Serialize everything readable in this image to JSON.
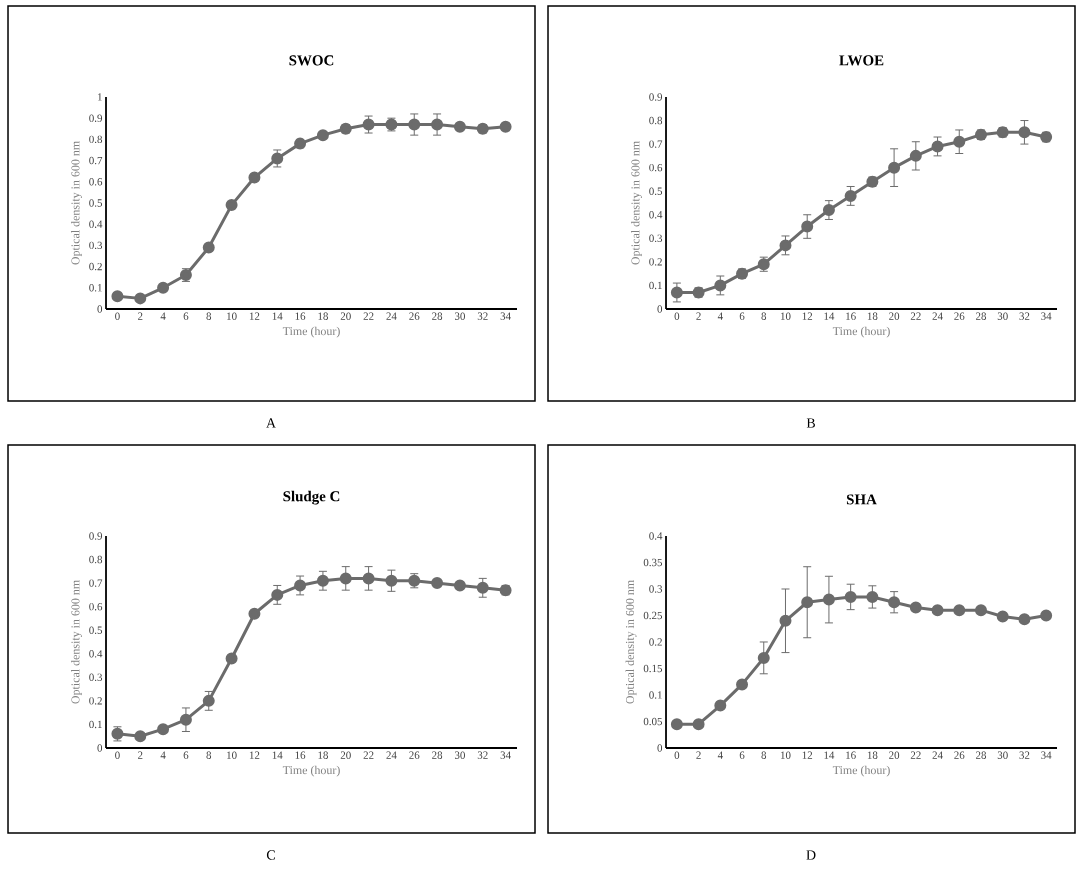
{
  "chart_data": [
    {
      "type": "line",
      "title": "SWOC",
      "xlabel": "Time (hour)",
      "ylabel": "Optical density in 600 nm",
      "annotations": [
        "A"
      ],
      "color": "#6b6b6b",
      "marker": "circle",
      "categories": [
        "0",
        "2",
        "4",
        "6",
        "8",
        "10",
        "12",
        "14",
        "16",
        "18",
        "20",
        "22",
        "24",
        "26",
        "28",
        "30",
        "32",
        "34"
      ],
      "values": [
        0.06,
        0.05,
        0.1,
        0.16,
        0.29,
        0.49,
        0.62,
        0.71,
        0.78,
        0.82,
        0.85,
        0.87,
        0.87,
        0.87,
        0.87,
        0.86,
        0.85,
        0.86
      ],
      "errors": [
        null,
        null,
        null,
        0.03,
        null,
        null,
        null,
        0.04,
        0.02,
        null,
        0.02,
        0.04,
        0.03,
        0.05,
        0.05,
        null,
        0.02,
        null
      ],
      "ylim": [
        0,
        1
      ],
      "yticks": [
        0,
        0.1,
        0.2,
        0.3,
        0.4,
        0.5,
        0.6,
        0.7,
        0.8,
        0.9,
        1
      ]
    },
    {
      "type": "line",
      "title": "LWOE",
      "xlabel": "Time (hour)",
      "ylabel": "Optical density in 600 nm",
      "annotations": [
        "B"
      ],
      "color": "#6b6b6b",
      "marker": "circle",
      "categories": [
        "0",
        "2",
        "4",
        "6",
        "8",
        "10",
        "12",
        "14",
        "16",
        "18",
        "20",
        "22",
        "24",
        "26",
        "28",
        "30",
        "32",
        "34"
      ],
      "values": [
        0.07,
        0.07,
        0.1,
        0.15,
        0.19,
        0.27,
        0.35,
        0.42,
        0.48,
        0.54,
        0.6,
        0.65,
        0.69,
        0.71,
        0.74,
        0.75,
        0.75,
        0.73
      ],
      "errors": [
        0.04,
        0.02,
        0.04,
        0.02,
        0.03,
        0.04,
        0.05,
        0.04,
        0.04,
        0.02,
        0.08,
        0.06,
        0.04,
        0.05,
        0.02,
        0.02,
        0.05,
        0.02
      ],
      "ylim": [
        0,
        0.9
      ],
      "yticks": [
        0,
        0.1,
        0.2,
        0.3,
        0.4,
        0.5,
        0.6,
        0.7,
        0.8,
        0.9
      ]
    },
    {
      "type": "line",
      "title": "Sludge C",
      "xlabel": "Time (hour)",
      "ylabel": "Optical density in 600 nm",
      "annotations": [
        "C"
      ],
      "color": "#6b6b6b",
      "marker": "circle",
      "categories": [
        "0",
        "2",
        "4",
        "6",
        "8",
        "10",
        "12",
        "14",
        "16",
        "18",
        "20",
        "22",
        "24",
        "26",
        "28",
        "30",
        "32",
        "34"
      ],
      "values": [
        0.06,
        0.05,
        0.08,
        0.12,
        0.2,
        0.38,
        0.57,
        0.65,
        0.69,
        0.71,
        0.72,
        0.72,
        0.71,
        0.71,
        0.7,
        0.69,
        0.68,
        0.67
      ],
      "errors": [
        0.03,
        null,
        null,
        0.05,
        0.04,
        null,
        null,
        0.04,
        0.04,
        0.04,
        0.05,
        0.05,
        0.045,
        0.03,
        null,
        null,
        0.04,
        0.02
      ],
      "ylim": [
        0,
        0.9
      ],
      "yticks": [
        0,
        0.1,
        0.2,
        0.3,
        0.4,
        0.5,
        0.6,
        0.7,
        0.8,
        0.9
      ]
    },
    {
      "type": "line",
      "title": "SHA",
      "xlabel": "Time (hour)",
      "ylabel": "Optical density in 600 nm",
      "annotations": [
        "D"
      ],
      "color": "#6b6b6b",
      "marker": "circle",
      "categories": [
        "0",
        "2",
        "4",
        "6",
        "8",
        "10",
        "12",
        "14",
        "16",
        "18",
        "20",
        "22",
        "24",
        "26",
        "28",
        "30",
        "32",
        "34"
      ],
      "values": [
        0.045,
        0.045,
        0.08,
        0.12,
        0.17,
        0.24,
        0.275,
        0.28,
        0.285,
        0.285,
        0.275,
        0.265,
        0.26,
        0.26,
        0.26,
        0.248,
        0.243,
        0.25
      ],
      "errors": [
        null,
        null,
        null,
        null,
        0.03,
        0.06,
        0.067,
        0.044,
        0.024,
        0.021,
        0.02,
        null,
        null,
        null,
        null,
        null,
        null,
        null
      ],
      "ylim": [
        0,
        0.4
      ],
      "yticks": [
        0,
        0.05,
        0.1,
        0.15,
        0.2,
        0.25,
        0.3,
        0.35,
        0.4
      ]
    }
  ]
}
